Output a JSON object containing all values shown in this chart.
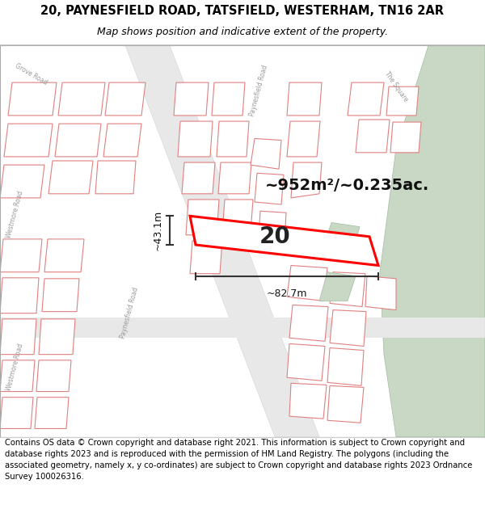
{
  "title_line1": "20, PAYNESFIELD ROAD, TATSFIELD, WESTERHAM, TN16 2AR",
  "title_line2": "Map shows position and indicative extent of the property.",
  "footer_text": "Contains OS data © Crown copyright and database right 2021. This information is subject to Crown copyright and database rights 2023 and is reproduced with the permission of HM Land Registry. The polygons (including the associated geometry, namely x, y co-ordinates) are subject to Crown copyright and database rights 2023 Ordnance Survey 100026316.",
  "area_label": "~952m²/~0.235ac.",
  "number_label": "20",
  "width_label": "~82.7m",
  "height_label": "~43.1m",
  "bg_color": "#f0f0f0",
  "map_bg": "#f0f0f0",
  "white": "#ffffff",
  "green_color": "#c8d8c4",
  "plot_line_color": "#ff0000",
  "block_fill": "#e8e8e8",
  "block_edge": "#e08080",
  "road_fill": "#f5f5f5",
  "dim_line_color": "#333333",
  "label_color": "#999999",
  "title_fontsize": 10.5,
  "subtitle_fontsize": 9,
  "footer_fontsize": 7.2,
  "area_fontsize": 14,
  "number_fontsize": 20,
  "dim_fontsize": 9
}
